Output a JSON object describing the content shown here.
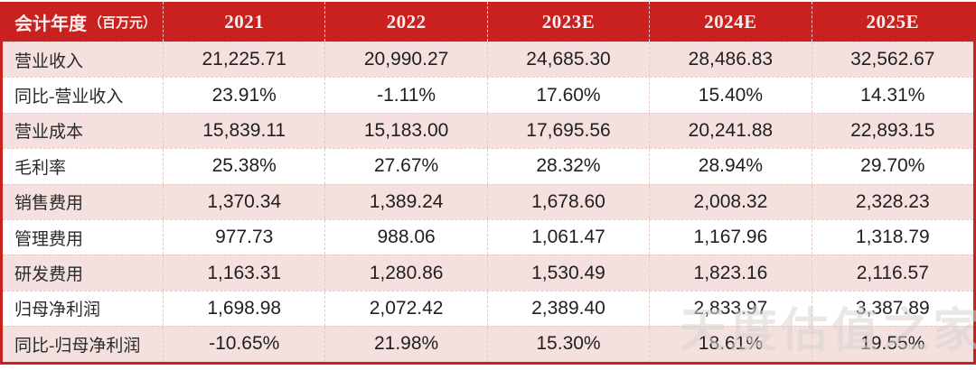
{
  "header": {
    "label_title": "会计年度",
    "label_unit": "（百万元）",
    "years": [
      "2021",
      "2022",
      "2023E",
      "2024E",
      "2025E"
    ]
  },
  "watermark": {
    "text": "天度估值之家"
  },
  "colors": {
    "header_bg": "#c8211f",
    "header_text": "#f7eeed",
    "row_pink": "#f4e1df",
    "row_white": "#ffffff",
    "body_text": "#1f1f1f",
    "border_red": "#c8211f",
    "dashed_line": "#e4c9c6",
    "watermark_gray": "#d9d4d1"
  },
  "chart_data": {
    "type": "table",
    "title": "会计年度（百万元）",
    "columns": [
      "会计年度（百万元）",
      "2021",
      "2022",
      "2023E",
      "2024E",
      "2025E"
    ],
    "rows": [
      [
        "营业收入",
        "21,225.71",
        "20,990.27",
        "24,685.30",
        "28,486.83",
        "32,562.67"
      ],
      [
        "同比-营业收入",
        "23.91%",
        "-1.11%",
        "17.60%",
        "15.40%",
        "14.31%"
      ],
      [
        "营业成本",
        "15,839.11",
        "15,183.00",
        "17,695.56",
        "20,241.88",
        "22,893.15"
      ],
      [
        "毛利率",
        "25.38%",
        "27.67%",
        "28.32%",
        "28.94%",
        "29.70%"
      ],
      [
        "销售费用",
        "1,370.34",
        "1,389.24",
        "1,678.60",
        "2,008.32",
        "2,328.23"
      ],
      [
        "管理费用",
        "977.73",
        "988.06",
        "1,061.47",
        "1,167.96",
        "1,318.79"
      ],
      [
        "研发费用",
        "1,163.31",
        "1,280.86",
        "1,530.49",
        "1,823.16",
        "2,116.57"
      ],
      [
        "归母净利润",
        "1,698.98",
        "2,072.42",
        "2,389.40",
        "2,833.97",
        "3,387.89"
      ],
      [
        "同比-归母净利润",
        "-10.65%",
        "21.98%",
        "15.30%",
        "18.61%",
        "19.55%"
      ]
    ]
  }
}
